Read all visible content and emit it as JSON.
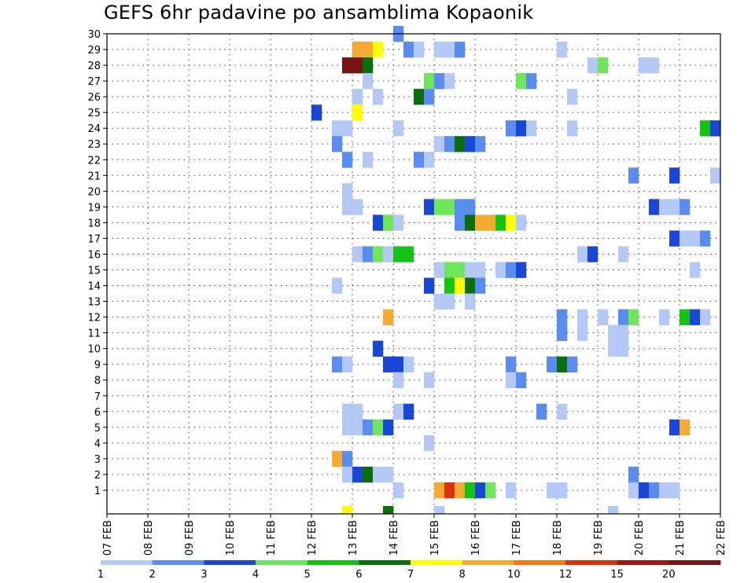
{
  "chart_data": {
    "type": "heatmap",
    "title": "GEFS 6hr padavine po ansamblima Kopaonik",
    "xlabel": "",
    "ylabel": "",
    "x_ticks": [
      "07 FEB",
      "08 FEB",
      "09 FEB",
      "10 FEB",
      "11 FEB",
      "12 FEB",
      "13 FEB",
      "14 FEB",
      "15 FEB",
      "16 FEB",
      "17 FEB",
      "18 FEB",
      "19 FEB",
      "20 FEB",
      "21 FEB",
      "22 FEB"
    ],
    "y_ticks": [
      1,
      2,
      3,
      4,
      5,
      6,
      7,
      8,
      9,
      10,
      11,
      12,
      13,
      14,
      15,
      16,
      17,
      18,
      19,
      20,
      21,
      22,
      23,
      24,
      25,
      26,
      27,
      28,
      29,
      30
    ],
    "xlim": [
      "07 FEB 00Z",
      "22 FEB 00Z"
    ],
    "ylim": [
      0,
      30
    ],
    "time_step_hours": 6,
    "grid": true,
    "legend_position": "bottom",
    "colorbar": {
      "labels": [
        "1",
        "2",
        "3",
        "4",
        "5",
        "6",
        "7",
        "8",
        "10",
        "12",
        "15",
        "20"
      ],
      "colors": [
        "#b4c8f5",
        "#5a8cf0",
        "#1a46d8",
        "#6ee65a",
        "#14c314",
        "#0a6e0a",
        "#ffff00",
        "#f5aa32",
        "#f57814",
        "#dc320a",
        "#a01414",
        "#781414"
      ]
    },
    "cells": [
      {
        "member": 30,
        "time": "14 FEB 00Z",
        "value": 2
      },
      {
        "member": 29,
        "time": "13 FEB 00Z",
        "value": 8
      },
      {
        "member": 29,
        "time": "13 FEB 06Z",
        "value": 8
      },
      {
        "member": 29,
        "time": "13 FEB 12Z",
        "value": 7
      },
      {
        "member": 29,
        "time": "14 FEB 06Z",
        "value": 2
      },
      {
        "member": 29,
        "time": "14 FEB 12Z",
        "value": 1
      },
      {
        "member": 29,
        "time": "15 FEB 00Z",
        "value": 1
      },
      {
        "member": 29,
        "time": "15 FEB 06Z",
        "value": 1
      },
      {
        "member": 29,
        "time": "15 FEB 12Z",
        "value": 2
      },
      {
        "member": 29,
        "time": "18 FEB 00Z",
        "value": 1
      },
      {
        "member": 28,
        "time": "12 FEB 18Z",
        "value": 20
      },
      {
        "member": 28,
        "time": "13 FEB 00Z",
        "value": 20
      },
      {
        "member": 28,
        "time": "13 FEB 06Z",
        "value": 6
      },
      {
        "member": 28,
        "time": "18 FEB 18Z",
        "value": 1
      },
      {
        "member": 28,
        "time": "19 FEB 00Z",
        "value": 4
      },
      {
        "member": 28,
        "time": "20 FEB 00Z",
        "value": 1
      },
      {
        "member": 28,
        "time": "20 FEB 06Z",
        "value": 1
      },
      {
        "member": 27,
        "time": "13 FEB 06Z",
        "value": 1
      },
      {
        "member": 27,
        "time": "14 FEB 18Z",
        "value": 4
      },
      {
        "member": 27,
        "time": "15 FEB 00Z",
        "value": 2
      },
      {
        "member": 27,
        "time": "15 FEB 06Z",
        "value": 1
      },
      {
        "member": 27,
        "time": "17 FEB 00Z",
        "value": 4
      },
      {
        "member": 27,
        "time": "17 FEB 06Z",
        "value": 2
      },
      {
        "member": 26,
        "time": "13 FEB 00Z",
        "value": 1
      },
      {
        "member": 26,
        "time": "13 FEB 12Z",
        "value": 1
      },
      {
        "member": 26,
        "time": "14 FEB 12Z",
        "value": 6
      },
      {
        "member": 26,
        "time": "14 FEB 18Z",
        "value": 2
      },
      {
        "member": 26,
        "time": "18 FEB 06Z",
        "value": 1
      },
      {
        "member": 25,
        "time": "12 FEB 00Z",
        "value": 3
      },
      {
        "member": 25,
        "time": "13 FEB 00Z",
        "value": 7
      },
      {
        "member": 24,
        "time": "12 FEB 12Z",
        "value": 1
      },
      {
        "member": 24,
        "time": "12 FEB 18Z",
        "value": 1
      },
      {
        "member": 24,
        "time": "14 FEB 00Z",
        "value": 1
      },
      {
        "member": 24,
        "time": "16 FEB 18Z",
        "value": 2
      },
      {
        "member": 24,
        "time": "17 FEB 00Z",
        "value": 3
      },
      {
        "member": 24,
        "time": "17 FEB 06Z",
        "value": 1
      },
      {
        "member": 24,
        "time": "18 FEB 06Z",
        "value": 1
      },
      {
        "member": 24,
        "time": "21 FEB 12Z",
        "value": 5
      },
      {
        "member": 24,
        "time": "21 FEB 18Z",
        "value": 3
      },
      {
        "member": 23,
        "time": "12 FEB 12Z",
        "value": 2
      },
      {
        "member": 23,
        "time": "15 FEB 00Z",
        "value": 1
      },
      {
        "member": 23,
        "time": "15 FEB 06Z",
        "value": 2
      },
      {
        "member": 23,
        "time": "15 FEB 12Z",
        "value": 6
      },
      {
        "member": 23,
        "time": "15 FEB 18Z",
        "value": 3
      },
      {
        "member": 23,
        "time": "16 FEB 00Z",
        "value": 2
      },
      {
        "member": 22,
        "time": "12 FEB 18Z",
        "value": 2
      },
      {
        "member": 22,
        "time": "13 FEB 06Z",
        "value": 1
      },
      {
        "member": 22,
        "time": "14 FEB 12Z",
        "value": 2
      },
      {
        "member": 22,
        "time": "14 FEB 18Z",
        "value": 1
      },
      {
        "member": 21,
        "time": "19 FEB 18Z",
        "value": 2
      },
      {
        "member": 21,
        "time": "20 FEB 18Z",
        "value": 3
      },
      {
        "member": 21,
        "time": "21 FEB 18Z",
        "value": 1
      },
      {
        "member": 20,
        "time": "12 FEB 18Z",
        "value": 1
      },
      {
        "member": 19,
        "time": "12 FEB 18Z",
        "value": 1
      },
      {
        "member": 19,
        "time": "13 FEB 00Z",
        "value": 1
      },
      {
        "member": 19,
        "time": "14 FEB 18Z",
        "value": 3
      },
      {
        "member": 19,
        "time": "15 FEB 00Z",
        "value": 4
      },
      {
        "member": 19,
        "time": "15 FEB 06Z",
        "value": 4
      },
      {
        "member": 19,
        "time": "15 FEB 12Z",
        "value": 2
      },
      {
        "member": 19,
        "time": "15 FEB 18Z",
        "value": 2
      },
      {
        "member": 19,
        "time": "20 FEB 06Z",
        "value": 3
      },
      {
        "member": 19,
        "time": "20 FEB 12Z",
        "value": 1
      },
      {
        "member": 19,
        "time": "20 FEB 18Z",
        "value": 1
      },
      {
        "member": 19,
        "time": "21 FEB 00Z",
        "value": 2
      },
      {
        "member": 18,
        "time": "13 FEB 12Z",
        "value": 3
      },
      {
        "member": 18,
        "time": "13 FEB 18Z",
        "value": 4
      },
      {
        "member": 18,
        "time": "14 FEB 00Z",
        "value": 1
      },
      {
        "member": 18,
        "time": "15 FEB 12Z",
        "value": 2
      },
      {
        "member": 18,
        "time": "15 FEB 18Z",
        "value": 6
      },
      {
        "member": 18,
        "time": "16 FEB 00Z",
        "value": 8
      },
      {
        "member": 18,
        "time": "16 FEB 06Z",
        "value": 8
      },
      {
        "member": 18,
        "time": "16 FEB 12Z",
        "value": 5
      },
      {
        "member": 18,
        "time": "16 FEB 18Z",
        "value": 7
      },
      {
        "member": 18,
        "time": "17 FEB 00Z",
        "value": 1
      },
      {
        "member": 17,
        "time": "20 FEB 18Z",
        "value": 3
      },
      {
        "member": 17,
        "time": "21 FEB 00Z",
        "value": 1
      },
      {
        "member": 17,
        "time": "21 FEB 06Z",
        "value": 1
      },
      {
        "member": 17,
        "time": "21 FEB 12Z",
        "value": 2
      },
      {
        "member": 16,
        "time": "13 FEB 00Z",
        "value": 1
      },
      {
        "member": 16,
        "time": "13 FEB 06Z",
        "value": 2
      },
      {
        "member": 16,
        "time": "13 FEB 12Z",
        "value": 4
      },
      {
        "member": 16,
        "time": "13 FEB 18Z",
        "value": 1
      },
      {
        "member": 16,
        "time": "14 FEB 00Z",
        "value": 5
      },
      {
        "member": 16,
        "time": "14 FEB 06Z",
        "value": 5
      },
      {
        "member": 16,
        "time": "18 FEB 12Z",
        "value": 1
      },
      {
        "member": 16,
        "time": "18 FEB 18Z",
        "value": 3
      },
      {
        "member": 16,
        "time": "19 FEB 12Z",
        "value": 1
      },
      {
        "member": 15,
        "time": "15 FEB 00Z",
        "value": 1
      },
      {
        "member": 15,
        "time": "15 FEB 06Z",
        "value": 4
      },
      {
        "member": 15,
        "time": "15 FEB 12Z",
        "value": 4
      },
      {
        "member": 15,
        "time": "15 FEB 18Z",
        "value": 1
      },
      {
        "member": 15,
        "time": "16 FEB 00Z",
        "value": 1
      },
      {
        "member": 15,
        "time": "16 FEB 12Z",
        "value": 1
      },
      {
        "member": 15,
        "time": "16 FEB 18Z",
        "value": 2
      },
      {
        "member": 15,
        "time": "17 FEB 00Z",
        "value": 3
      },
      {
        "member": 15,
        "time": "21 FEB 06Z",
        "value": 1
      },
      {
        "member": 14,
        "time": "12 FEB 12Z",
        "value": 1
      },
      {
        "member": 14,
        "time": "14 FEB 18Z",
        "value": 3
      },
      {
        "member": 14,
        "time": "15 FEB 06Z",
        "value": 5
      },
      {
        "member": 14,
        "time": "15 FEB 12Z",
        "value": 7
      },
      {
        "member": 14,
        "time": "15 FEB 18Z",
        "value": 6
      },
      {
        "member": 14,
        "time": "16 FEB 00Z",
        "value": 2
      },
      {
        "member": 13,
        "time": "15 FEB 00Z",
        "value": 1
      },
      {
        "member": 13,
        "time": "15 FEB 06Z",
        "value": 1
      },
      {
        "member": 13,
        "time": "15 FEB 18Z",
        "value": 1
      },
      {
        "member": 12,
        "time": "13 FEB 18Z",
        "value": 8
      },
      {
        "member": 12,
        "time": "18 FEB 00Z",
        "value": 2
      },
      {
        "member": 12,
        "time": "18 FEB 12Z",
        "value": 1
      },
      {
        "member": 12,
        "time": "19 FEB 00Z",
        "value": 1
      },
      {
        "member": 12,
        "time": "19 FEB 12Z",
        "value": 2
      },
      {
        "member": 12,
        "time": "19 FEB 18Z",
        "value": 4
      },
      {
        "member": 12,
        "time": "20 FEB 12Z",
        "value": 1
      },
      {
        "member": 12,
        "time": "21 FEB 00Z",
        "value": 5
      },
      {
        "member": 12,
        "time": "21 FEB 06Z",
        "value": 3
      },
      {
        "member": 12,
        "time": "21 FEB 12Z",
        "value": 1
      },
      {
        "member": 11,
        "time": "18 FEB 00Z",
        "value": 2
      },
      {
        "member": 11,
        "time": "18 FEB 12Z",
        "value": 1
      },
      {
        "member": 11,
        "time": "19 FEB 06Z",
        "value": 1
      },
      {
        "member": 11,
        "time": "19 FEB 12Z",
        "value": 1
      },
      {
        "member": 10,
        "time": "13 FEB 12Z",
        "value": 3
      },
      {
        "member": 10,
        "time": "19 FEB 06Z",
        "value": 1
      },
      {
        "member": 10,
        "time": "19 FEB 12Z",
        "value": 1
      },
      {
        "member": 9,
        "time": "12 FEB 12Z",
        "value": 2
      },
      {
        "member": 9,
        "time": "12 FEB 18Z",
        "value": 1
      },
      {
        "member": 9,
        "time": "13 FEB 18Z",
        "value": 3
      },
      {
        "member": 9,
        "time": "14 FEB 00Z",
        "value": 3
      },
      {
        "member": 9,
        "time": "14 FEB 06Z",
        "value": 1
      },
      {
        "member": 9,
        "time": "16 FEB 18Z",
        "value": 2
      },
      {
        "member": 9,
        "time": "17 FEB 18Z",
        "value": 2
      },
      {
        "member": 9,
        "time": "18 FEB 00Z",
        "value": 6
      },
      {
        "member": 9,
        "time": "18 FEB 06Z",
        "value": 2
      },
      {
        "member": 8,
        "time": "14 FEB 00Z",
        "value": 1
      },
      {
        "member": 8,
        "time": "14 FEB 18Z",
        "value": 1
      },
      {
        "member": 8,
        "time": "16 FEB 18Z",
        "value": 1
      },
      {
        "member": 8,
        "time": "17 FEB 00Z",
        "value": 2
      },
      {
        "member": 6,
        "time": "12 FEB 18Z",
        "value": 1
      },
      {
        "member": 6,
        "time": "13 FEB 00Z",
        "value": 1
      },
      {
        "member": 6,
        "time": "14 FEB 00Z",
        "value": 1
      },
      {
        "member": 6,
        "time": "14 FEB 06Z",
        "value": 3
      },
      {
        "member": 6,
        "time": "17 FEB 12Z",
        "value": 2
      },
      {
        "member": 6,
        "time": "18 FEB 00Z",
        "value": 1
      },
      {
        "member": 5,
        "time": "12 FEB 18Z",
        "value": 1
      },
      {
        "member": 5,
        "time": "13 FEB 00Z",
        "value": 1
      },
      {
        "member": 5,
        "time": "13 FEB 06Z",
        "value": 2
      },
      {
        "member": 5,
        "time": "13 FEB 12Z",
        "value": 4
      },
      {
        "member": 5,
        "time": "13 FEB 18Z",
        "value": 3
      },
      {
        "member": 5,
        "time": "20 FEB 18Z",
        "value": 3
      },
      {
        "member": 5,
        "time": "21 FEB 00Z",
        "value": 8
      },
      {
        "member": 4,
        "time": "14 FEB 18Z",
        "value": 1
      },
      {
        "member": 3,
        "time": "12 FEB 12Z",
        "value": 8
      },
      {
        "member": 3,
        "time": "12 FEB 18Z",
        "value": 2
      },
      {
        "member": 2,
        "time": "12 FEB 18Z",
        "value": 1
      },
      {
        "member": 2,
        "time": "13 FEB 00Z",
        "value": 3
      },
      {
        "member": 2,
        "time": "13 FEB 06Z",
        "value": 6
      },
      {
        "member": 2,
        "time": "13 FEB 12Z",
        "value": 1
      },
      {
        "member": 2,
        "time": "13 FEB 18Z",
        "value": 1
      },
      {
        "member": 2,
        "time": "19 FEB 18Z",
        "value": 2
      },
      {
        "member": 1,
        "time": "14 FEB 00Z",
        "value": 1
      },
      {
        "member": 1,
        "time": "15 FEB 00Z",
        "value": 8
      },
      {
        "member": 1,
        "time": "15 FEB 06Z",
        "value": 12
      },
      {
        "member": 1,
        "time": "15 FEB 12Z",
        "value": 8
      },
      {
        "member": 1,
        "time": "15 FEB 18Z",
        "value": 5
      },
      {
        "member": 1,
        "time": "16 FEB 00Z",
        "value": 3
      },
      {
        "member": 1,
        "time": "16 FEB 06Z",
        "value": 4
      },
      {
        "member": 1,
        "time": "16 FEB 18Z",
        "value": 1
      },
      {
        "member": 1,
        "time": "17 FEB 18Z",
        "value": 1
      },
      {
        "member": 1,
        "time": "18 FEB 00Z",
        "value": 1
      },
      {
        "member": 1,
        "time": "19 FEB 18Z",
        "value": 1
      },
      {
        "member": 1,
        "time": "20 FEB 00Z",
        "value": 3
      },
      {
        "member": 1,
        "time": "20 FEB 06Z",
        "value": 2
      },
      {
        "member": 1,
        "time": "20 FEB 12Z",
        "value": 1
      },
      {
        "member": 1,
        "time": "20 FEB 18Z",
        "value": 1
      },
      {
        "member": 0,
        "time": "12 FEB 18Z",
        "value": 7
      },
      {
        "member": 0,
        "time": "13 FEB 18Z",
        "value": 6
      },
      {
        "member": 0,
        "time": "15 FEB 00Z",
        "value": 1
      },
      {
        "member": 0,
        "time": "19 FEB 06Z",
        "value": 1
      }
    ]
  }
}
